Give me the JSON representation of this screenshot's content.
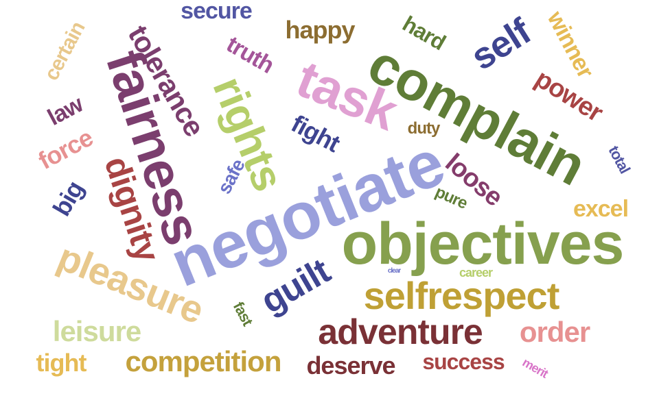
{
  "words": [
    {
      "text": "negotiate",
      "color": "#9aa0dc"
    },
    {
      "text": "objectives",
      "color": "#86a04e"
    },
    {
      "text": "complain",
      "color": "#5f7d37"
    },
    {
      "text": "fairness",
      "color": "#7b3e6e"
    },
    {
      "text": "task",
      "color": "#e0a0d2"
    },
    {
      "text": "rights",
      "color": "#b5ce6a"
    },
    {
      "text": "pleasure",
      "color": "#e8c88c"
    },
    {
      "text": "selfrespect",
      "color": "#bfa035"
    },
    {
      "text": "adventure",
      "color": "#7a3136"
    },
    {
      "text": "dignity",
      "color": "#a84444"
    },
    {
      "text": "tolerance",
      "color": "#7b3e6e"
    },
    {
      "text": "guilt",
      "color": "#3e4490"
    },
    {
      "text": "self",
      "color": "#3e4490"
    },
    {
      "text": "competition",
      "color": "#c4a13c"
    },
    {
      "text": "leisure",
      "color": "#cedb9c"
    },
    {
      "text": "loose",
      "color": "#843c6b"
    },
    {
      "text": "power",
      "color": "#a84444"
    },
    {
      "text": "order",
      "color": "#e79191"
    },
    {
      "text": "happy",
      "color": "#8c6d31"
    },
    {
      "text": "deserve",
      "color": "#7a3136"
    },
    {
      "text": "success",
      "color": "#a84444"
    },
    {
      "text": "secure",
      "color": "#5256a3"
    },
    {
      "text": "winner",
      "color": "#e6bb55"
    },
    {
      "text": "force",
      "color": "#e79191"
    },
    {
      "text": "truth",
      "color": "#a45599"
    },
    {
      "text": "fight",
      "color": "#3e4490"
    },
    {
      "text": "excel",
      "color": "#e6bb55"
    },
    {
      "text": "tight",
      "color": "#e6bb55"
    },
    {
      "text": "hard",
      "color": "#5f7d37"
    },
    {
      "text": "certain",
      "color": "#e8c88c"
    },
    {
      "text": "big",
      "color": "#3e4490"
    },
    {
      "text": "law",
      "color": "#7b3e6e"
    },
    {
      "text": "safe",
      "color": "#6b72c8"
    },
    {
      "text": "duty",
      "color": "#8c6d31"
    },
    {
      "text": "pure",
      "color": "#5f7d37"
    },
    {
      "text": "total",
      "color": "#5256a3"
    },
    {
      "text": "fast",
      "color": "#5f7d37"
    },
    {
      "text": "career",
      "color": "#b5ce6a"
    },
    {
      "text": "merit",
      "color": "#d874c8"
    },
    {
      "text": "clear",
      "color": "#6b72c8"
    }
  ]
}
